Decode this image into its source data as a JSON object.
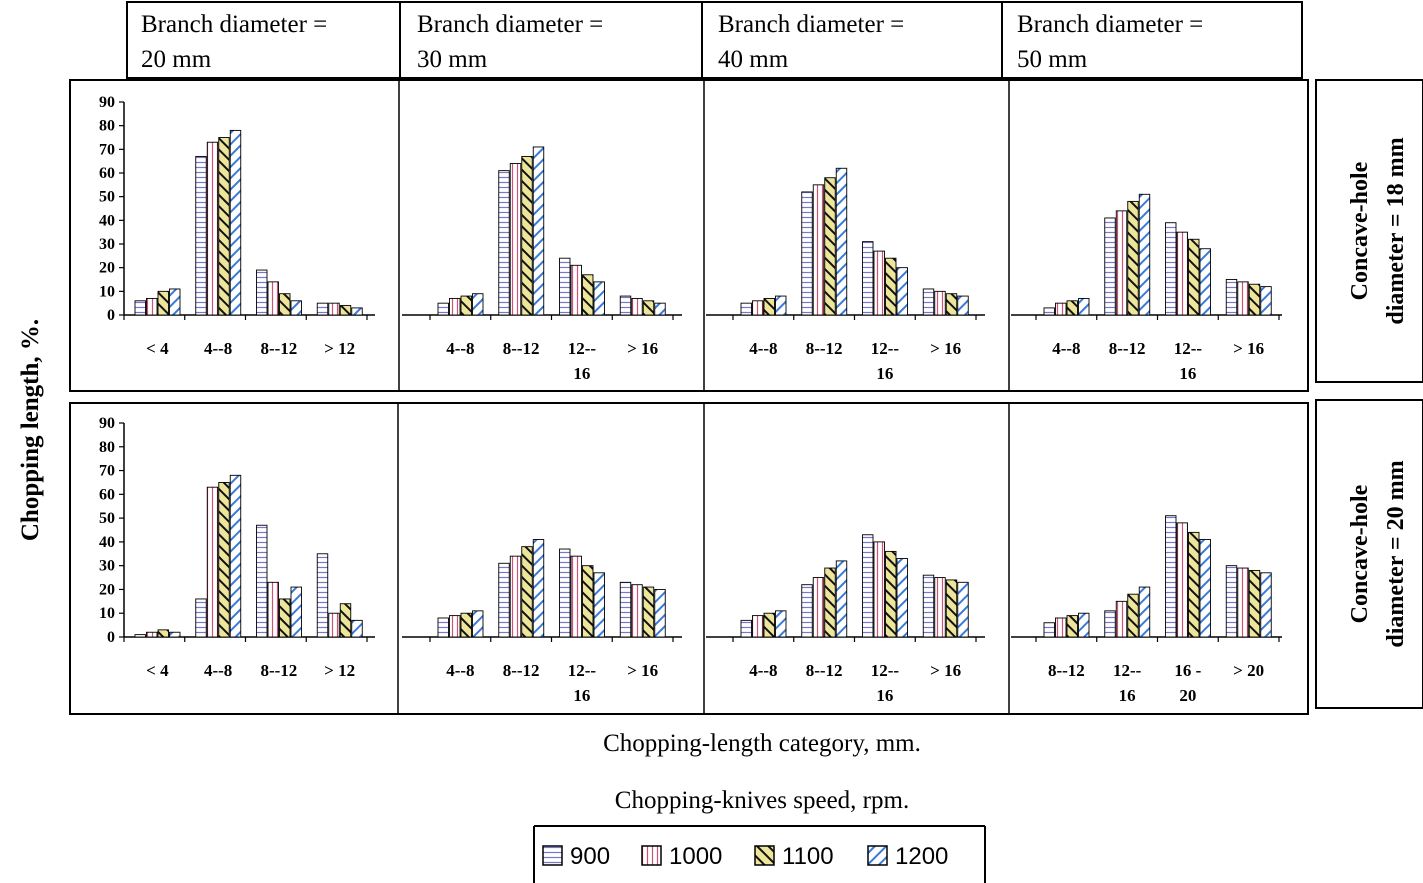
{
  "headers": [
    {
      "line1": "Branch diameter =",
      "line2": "20 mm"
    },
    {
      "line1": "Branch diameter =",
      "line2": "30 mm"
    },
    {
      "line1": "Branch diameter =",
      "line2": "40 mm"
    },
    {
      "line1": "Branch diameter =",
      "line2": "50 mm"
    }
  ],
  "row_labels": [
    {
      "line1": "Concave-hole",
      "line2": "diameter = 18 mm"
    },
    {
      "line1": "Concave-hole",
      "line2": "diameter = 20 mm"
    }
  ],
  "y_axis_label": "Chopping  length, %.",
  "x_axis_caption": "Chopping-length category, mm.",
  "legend_title": "Chopping-knives speed, rpm.",
  "colors": {
    "s900": "#7777cc",
    "s1000": "#cc5577",
    "s1100": "#d8d070",
    "s1200": "#3a7ad8"
  },
  "chart_data": {
    "type": "bar",
    "ylim": [
      0,
      90
    ],
    "yticks": [
      0,
      10,
      20,
      30,
      40,
      50,
      60,
      70,
      80,
      90
    ],
    "series_names": [
      "900",
      "1000",
      "1100",
      "1200"
    ],
    "panels": [
      {
        "row": 0,
        "col": 0,
        "categories": [
          "< 4",
          "4--8",
          "8--12",
          "> 12"
        ],
        "series": [
          {
            "name": "900",
            "values": [
              6,
              67,
              19,
              5
            ]
          },
          {
            "name": "1000",
            "values": [
              7,
              73,
              14,
              5
            ]
          },
          {
            "name": "1100",
            "values": [
              10,
              75,
              9,
              4
            ]
          },
          {
            "name": "1200",
            "values": [
              11,
              78,
              6,
              3
            ]
          }
        ]
      },
      {
        "row": 0,
        "col": 1,
        "categories": [
          "4--8",
          "8--12",
          "12--\n16",
          "> 16"
        ],
        "series": [
          {
            "name": "900",
            "values": [
              5,
              61,
              24,
              8
            ]
          },
          {
            "name": "1000",
            "values": [
              7,
              64,
              21,
              7
            ]
          },
          {
            "name": "1100",
            "values": [
              8,
              67,
              17,
              6
            ]
          },
          {
            "name": "1200",
            "values": [
              9,
              71,
              14,
              5
            ]
          }
        ]
      },
      {
        "row": 0,
        "col": 2,
        "categories": [
          "4--8",
          "8--12",
          "12--\n16",
          "> 16"
        ],
        "series": [
          {
            "name": "900",
            "values": [
              5,
              52,
              31,
              11
            ]
          },
          {
            "name": "1000",
            "values": [
              6,
              55,
              27,
              10
            ]
          },
          {
            "name": "1100",
            "values": [
              7,
              58,
              24,
              9
            ]
          },
          {
            "name": "1200",
            "values": [
              8,
              62,
              20,
              8
            ]
          }
        ]
      },
      {
        "row": 0,
        "col": 3,
        "categories": [
          "4--8",
          "8--12",
          "12--\n16",
          "> 16"
        ],
        "series": [
          {
            "name": "900",
            "values": [
              3,
              41,
              39,
              15
            ]
          },
          {
            "name": "1000",
            "values": [
              5,
              44,
              35,
              14
            ]
          },
          {
            "name": "1100",
            "values": [
              6,
              48,
              32,
              13
            ]
          },
          {
            "name": "1200",
            "values": [
              7,
              51,
              28,
              12
            ]
          }
        ]
      },
      {
        "row": 1,
        "col": 0,
        "categories": [
          "< 4",
          "4--8",
          "8--12",
          "> 12"
        ],
        "series": [
          {
            "name": "900",
            "values": [
              1,
              16,
              47,
              35
            ]
          },
          {
            "name": "1000",
            "values": [
              2,
              63,
              23,
              10
            ]
          },
          {
            "name": "1100",
            "values": [
              3,
              65,
              16,
              14
            ]
          },
          {
            "name": "1200",
            "values": [
              2,
              68,
              21,
              7
            ]
          }
        ]
      },
      {
        "row": 1,
        "col": 1,
        "categories": [
          "4--8",
          "8--12",
          "12--\n16",
          "> 16"
        ],
        "series": [
          {
            "name": "900",
            "values": [
              8,
              31,
              37,
              23
            ]
          },
          {
            "name": "1000",
            "values": [
              9,
              34,
              34,
              22
            ]
          },
          {
            "name": "1100",
            "values": [
              10,
              38,
              30,
              21
            ]
          },
          {
            "name": "1200",
            "values": [
              11,
              41,
              27,
              20
            ]
          }
        ]
      },
      {
        "row": 1,
        "col": 2,
        "categories": [
          "4--8",
          "8--12",
          "12--\n16",
          "> 16"
        ],
        "series": [
          {
            "name": "900",
            "values": [
              7,
              22,
              43,
              26
            ]
          },
          {
            "name": "1000",
            "values": [
              9,
              25,
              40,
              25
            ]
          },
          {
            "name": "1100",
            "values": [
              10,
              29,
              36,
              24
            ]
          },
          {
            "name": "1200",
            "values": [
              11,
              32,
              33,
              23
            ]
          }
        ]
      },
      {
        "row": 1,
        "col": 3,
        "categories": [
          "8--12",
          "12--\n16",
          "16 -\n20",
          "> 20"
        ],
        "series": [
          {
            "name": "900",
            "values": [
              6,
              11,
              51,
              30
            ]
          },
          {
            "name": "1000",
            "values": [
              8,
              15,
              48,
              29
            ]
          },
          {
            "name": "1100",
            "values": [
              9,
              18,
              44,
              28
            ]
          },
          {
            "name": "1200",
            "values": [
              10,
              21,
              41,
              27
            ]
          }
        ]
      }
    ]
  }
}
